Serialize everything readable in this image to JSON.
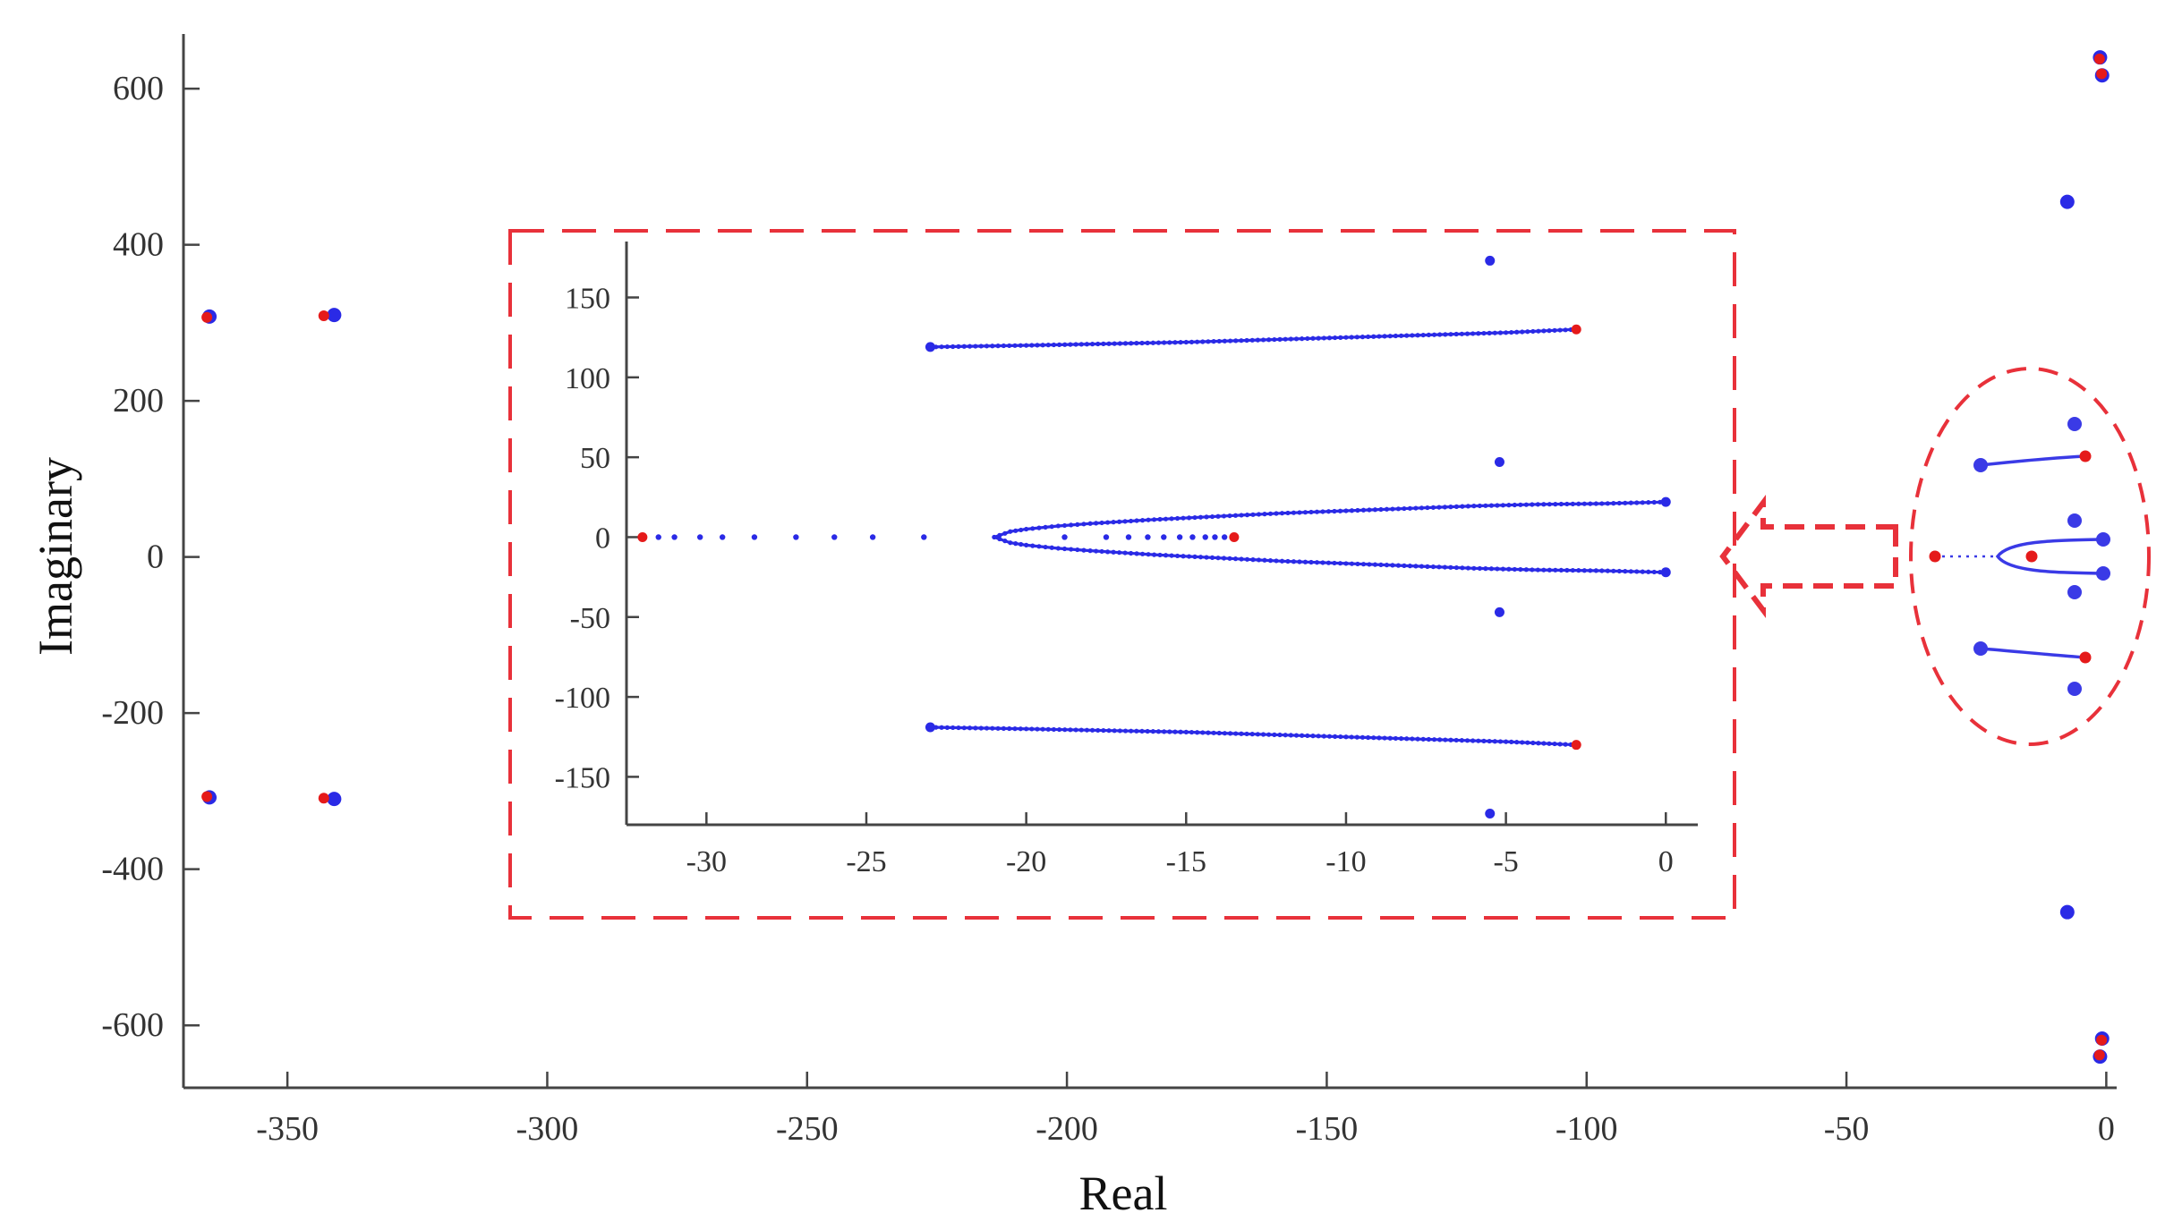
{
  "chart_data": [
    {
      "id": "main",
      "type": "scatter",
      "title": "",
      "xlabel": "Real",
      "ylabel": "Imaginary",
      "xlim": [
        -370,
        2
      ],
      "ylim": [
        -680,
        670
      ],
      "xticks": [
        -350,
        -300,
        -250,
        -200,
        -150,
        -100,
        -50,
        0
      ],
      "yticks": [
        600,
        400,
        200,
        0,
        -200,
        -400,
        -600
      ],
      "grid": false,
      "series": [
        {
          "role": "poles",
          "color": "#2a2ae6",
          "points": [
            [
              -365,
              308
            ],
            [
              -365,
              -308
            ],
            [
              -341,
              310
            ],
            [
              -341,
              -310
            ],
            [
              -7.5,
              455
            ],
            [
              -7.5,
              -455
            ],
            [
              -1.2,
              640
            ],
            [
              -1.2,
              -640
            ],
            [
              -0.8,
              617
            ],
            [
              -0.8,
              -617
            ]
          ]
        },
        {
          "role": "zeros",
          "color": "#e51a1a",
          "points": [
            [
              -365.5,
              307
            ],
            [
              -365.5,
              -307
            ],
            [
              -343,
              309
            ],
            [
              -343,
              -309
            ],
            [
              -1.3,
              638
            ],
            [
              -1.3,
              -638
            ],
            [
              -0.9,
              619
            ],
            [
              -0.9,
              -619
            ]
          ]
        }
      ]
    },
    {
      "id": "inset",
      "type": "scatter",
      "title": "",
      "xlabel": "",
      "ylabel": "",
      "xlim": [
        -32.5,
        1
      ],
      "ylim": [
        -180,
        185
      ],
      "xticks": [
        -30,
        -25,
        -20,
        -15,
        -10,
        -5,
        0
      ],
      "yticks": [
        150,
        100,
        50,
        0,
        -50,
        -100,
        -150
      ],
      "grid": false,
      "series": [
        {
          "role": "root-locus-upper",
          "color": "#2a2ae6",
          "x": [
            -23,
            -20,
            -15,
            -10,
            -5,
            -2.8
          ],
          "y": [
            119,
            120,
            122,
            125,
            128,
            130
          ]
        },
        {
          "role": "root-locus-lower",
          "color": "#2a2ae6",
          "x": [
            -23,
            -20,
            -15,
            -10,
            -5,
            -2.8
          ],
          "y": [
            -119,
            -120,
            -122,
            -125,
            -128,
            -130
          ]
        },
        {
          "role": "root-locus-parabola-upper",
          "color": "#2a2ae6",
          "x": [
            -21,
            -20.5,
            -20,
            -19,
            -18,
            -16,
            -14,
            -12,
            -10,
            -8,
            -6,
            -4,
            -2,
            0
          ],
          "y": [
            0,
            3.5,
            5,
            7,
            8.5,
            11,
            13,
            15,
            16.5,
            18,
            19.5,
            20.5,
            21,
            22
          ]
        },
        {
          "role": "root-locus-parabola-lower",
          "color": "#2a2ae6",
          "x": [
            -21,
            -20.5,
            -20,
            -19,
            -18,
            -16,
            -14,
            -12,
            -10,
            -8,
            -6,
            -4,
            -2,
            0
          ],
          "y": [
            0,
            -3.5,
            -5,
            -7,
            -8.5,
            -11,
            -13,
            -15,
            -16.5,
            -18,
            -19.5,
            -20.5,
            -21,
            -22
          ]
        },
        {
          "role": "real-axis-branch",
          "color": "#2a2ae6",
          "x": [
            -31.5,
            -31,
            -30.2,
            -29.5,
            -28.5,
            -27.2,
            -26,
            -24.8,
            -23.2,
            -18.8,
            -17.5,
            -16.8,
            -16.2,
            -15.7,
            -15.2,
            -14.8,
            -14.4,
            -14.1,
            -13.8
          ],
          "y": [
            0,
            0,
            0,
            0,
            0,
            0,
            0,
            0,
            0,
            0,
            0,
            0,
            0,
            0,
            0,
            0,
            0,
            0,
            0
          ]
        },
        {
          "role": "poles",
          "color": "#2a2ae6",
          "points": [
            [
              -5.5,
              173
            ],
            [
              -5.2,
              47
            ],
            [
              -5.2,
              -47
            ],
            [
              -5.5,
              -173
            ],
            [
              -23,
              119
            ],
            [
              -23,
              -119
            ],
            [
              0,
              22
            ],
            [
              0,
              -22
            ]
          ]
        },
        {
          "role": "zeros",
          "color": "#e51a1a",
          "points": [
            [
              -32,
              0
            ],
            [
              -13.5,
              0
            ],
            [
              -2.8,
              130
            ],
            [
              -2.8,
              -130
            ]
          ]
        }
      ]
    }
  ]
}
